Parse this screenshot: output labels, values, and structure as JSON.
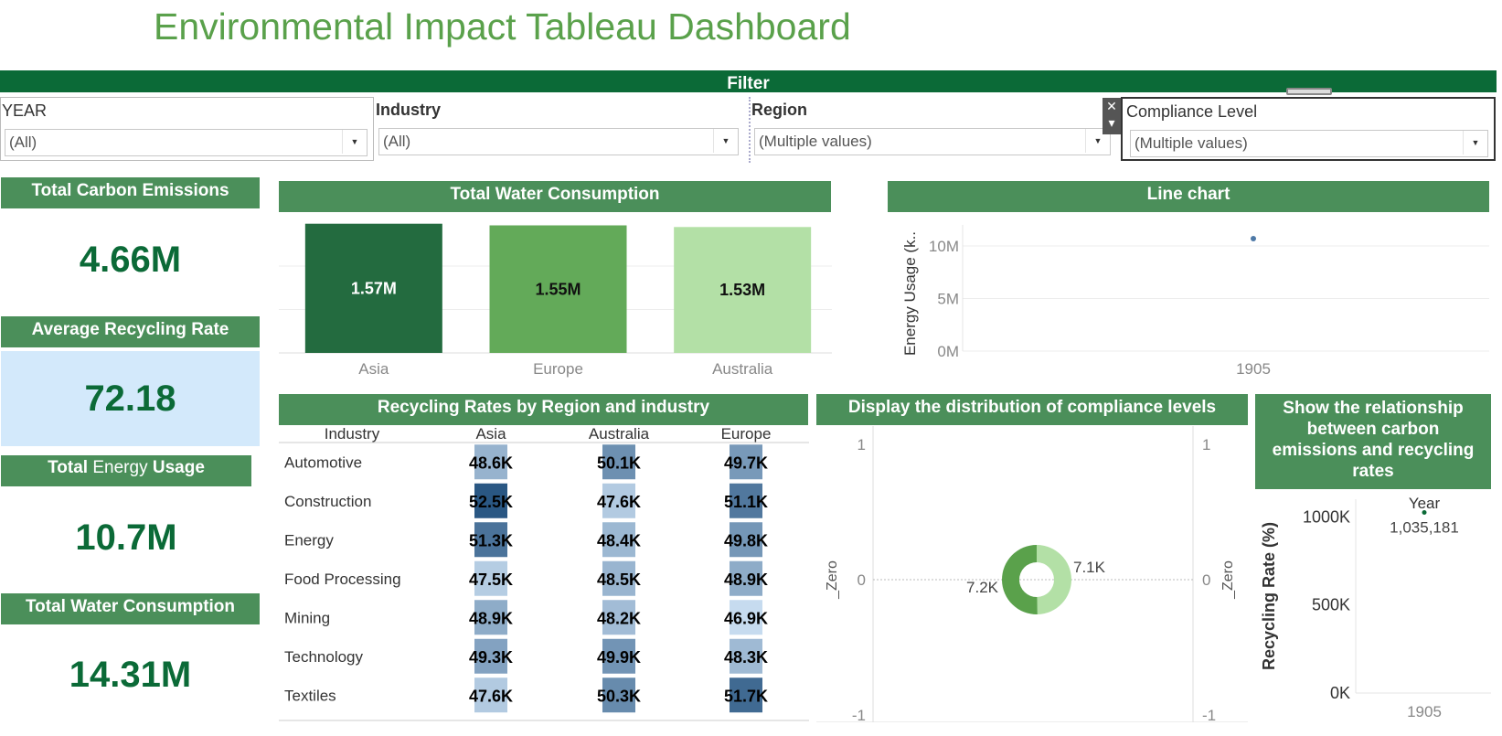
{
  "page": {
    "title": "Environmental Impact Tableau Dashboard"
  },
  "filter_bar": {
    "label": "Filter"
  },
  "filters": [
    {
      "label": "YEAR",
      "value": "(All)"
    },
    {
      "label": "Industry",
      "value": "(All)"
    },
    {
      "label": "Region",
      "value": "(Multiple values)"
    },
    {
      "label": "Compliance Level",
      "value": "(Multiple values)"
    }
  ],
  "filter_close": {
    "icon": "close-icon",
    "glyph": "✕",
    "menu_glyph": "▾"
  },
  "kpis": [
    {
      "label": "Total Carbon Emissions",
      "value": "4.66M"
    },
    {
      "label": "Average Recycling Rate",
      "value": "72.18"
    },
    {
      "label_part1": "Total ",
      "label_part2": "Energy",
      "label_part3": " Usage",
      "value": "10.7M"
    },
    {
      "label": "Total Water Consumption",
      "value": "14.31M"
    }
  ],
  "water_chart": {
    "header": "Total Water Consumption",
    "chart_data": {
      "type": "bar",
      "categories": [
        "Asia",
        "Europe",
        "Australia"
      ],
      "values": [
        1.57,
        1.55,
        1.53
      ],
      "labels": [
        "1.57M",
        "1.55M",
        "1.53M"
      ],
      "colors": [
        "#236b3f",
        "#63aa59",
        "#b3e0a6"
      ],
      "unit": "M"
    }
  },
  "line_chart": {
    "header": "Line chart",
    "chart_data": {
      "type": "scatter",
      "x": [
        "1905"
      ],
      "y": [
        10.7
      ],
      "ylabel": "Energy Usage (k..",
      "yticks": [
        "10M",
        "5M",
        "0M"
      ],
      "ylim": [
        0,
        12
      ],
      "point_color": "#4e79a7"
    }
  },
  "heatmap": {
    "header": "Recycling Rates by Region and industry",
    "chart_data": {
      "type": "heatmap",
      "row_header": "Industry",
      "columns": [
        "Asia",
        "Australia",
        "Europe"
      ],
      "rows": [
        "Automotive",
        "Construction",
        "Energy",
        "Food Processing",
        "Mining",
        "Technology",
        "Textiles"
      ],
      "values": [
        [
          48.6,
          50.1,
          49.7
        ],
        [
          52.5,
          47.6,
          51.1
        ],
        [
          51.3,
          48.4,
          49.8
        ],
        [
          47.5,
          48.5,
          48.9
        ],
        [
          48.9,
          48.2,
          46.9
        ],
        [
          49.3,
          49.9,
          48.3
        ],
        [
          47.6,
          50.3,
          51.7
        ]
      ],
      "labels": [
        [
          "48.6K",
          "50.1K",
          "49.7K"
        ],
        [
          "52.5K",
          "47.6K",
          "51.1K"
        ],
        [
          "51.3K",
          "48.4K",
          "49.8K"
        ],
        [
          "47.5K",
          "48.5K",
          "48.9K"
        ],
        [
          "48.9K",
          "48.2K",
          "46.9K"
        ],
        [
          "49.3K",
          "49.9K",
          "48.3K"
        ],
        [
          "47.6K",
          "50.3K",
          "51.7K"
        ]
      ],
      "color_low": "#c6dbef",
      "color_high": "#2a5783"
    }
  },
  "donut": {
    "header": "Display the distribution of compliance levels",
    "chart_data": {
      "type": "pie",
      "values": [
        7.1,
        7.2
      ],
      "labels": [
        "7.1K",
        "7.2K"
      ],
      "colors": [
        "#b3e0a6",
        "#5aa14b"
      ],
      "axis_label": "_Zero",
      "yticks": [
        "1",
        "0",
        "-1"
      ]
    }
  },
  "scatter": {
    "header": "Show the relationship between carbon emissions and recycling rates",
    "chart_data": {
      "type": "scatter",
      "legend_title": "Year",
      "x": [
        "1905"
      ],
      "y": [
        1035181
      ],
      "point_label": "1,035,181",
      "ylabel": "Recycling Rate (%)",
      "yticks": [
        "1000K",
        "500K",
        "0K"
      ],
      "ylim": [
        0,
        1100000
      ]
    }
  }
}
